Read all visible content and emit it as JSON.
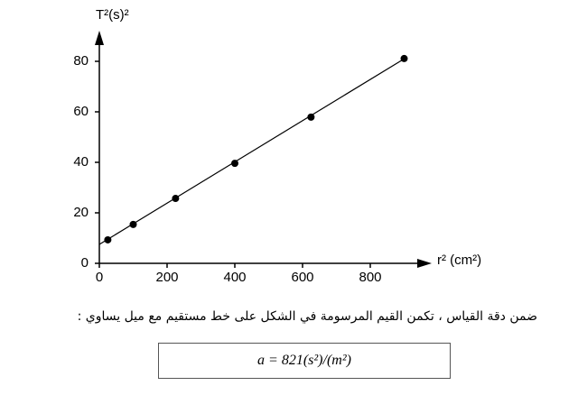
{
  "chart_data": {
    "type": "scatter",
    "ylabel": "T²(s)²",
    "xlabel": "r² (cm²)",
    "x": [
      25,
      100,
      225,
      400,
      625,
      900
    ],
    "values": [
      9.3,
      15.4,
      25.7,
      39.6,
      57.9,
      81.1
    ],
    "color": "#000000",
    "fit_line": {
      "x": [
        0,
        900
      ],
      "values": [
        7.5,
        81
      ]
    },
    "xlim": [
      0,
      960
    ],
    "ylim": [
      0,
      90
    ],
    "xticks": [
      0,
      200,
      400,
      600,
      800
    ],
    "yticks": [
      0,
      20,
      40,
      60,
      80
    ]
  },
  "text": "ضمن دقة القياس ، تكمن القيم المرسومة في الشكل على خط مستقيم مع ميل يساوي :",
  "formula": "a = 821(s²)/(m²)"
}
